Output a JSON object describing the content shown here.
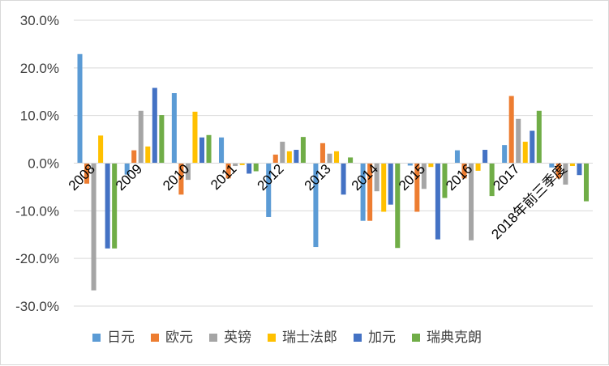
{
  "chart_data": {
    "type": "bar",
    "title": "",
    "xlabel": "",
    "ylabel": "",
    "ylim": [
      -0.3,
      0.3
    ],
    "y_ticks": [
      0.3,
      0.2,
      0.1,
      0.0,
      -0.1,
      -0.2,
      -0.3
    ],
    "y_tick_labels": [
      "30.0%",
      "20.0%",
      "10.0%",
      "0.0%",
      "-10.0%",
      "-20.0%",
      "-30.0%"
    ],
    "grid": "horizontal",
    "legend_position": "bottom",
    "categories": [
      "2008",
      "2009",
      "2010",
      "2011",
      "2012",
      "2013",
      "2014",
      "2015",
      "2016",
      "2017",
      "2018年前三季度"
    ],
    "series": [
      {
        "name": "日元",
        "color": "#5b9bd5",
        "values": [
          0.229,
          -0.024,
          0.147,
          0.054,
          -0.113,
          -0.176,
          -0.121,
          -0.005,
          0.027,
          0.038,
          -0.009
        ]
      },
      {
        "name": "欧元",
        "color": "#ed7d31",
        "values": [
          -0.043,
          0.027,
          -0.066,
          -0.032,
          0.018,
          0.042,
          -0.121,
          -0.102,
          -0.032,
          0.141,
          -0.032
        ]
      },
      {
        "name": "英镑",
        "color": "#a5a5a5",
        "values": [
          -0.267,
          0.11,
          -0.035,
          -0.006,
          0.045,
          0.02,
          -0.059,
          -0.054,
          -0.162,
          0.093,
          -0.045
        ]
      },
      {
        "name": "瑞士法郎",
        "color": "#ffc000",
        "values": [
          0.058,
          0.035,
          0.108,
          -0.004,
          0.025,
          0.025,
          -0.102,
          -0.008,
          -0.016,
          0.045,
          -0.006
        ]
      },
      {
        "name": "加元",
        "color": "#4472c4",
        "values": [
          -0.179,
          0.158,
          0.054,
          -0.022,
          0.028,
          -0.066,
          -0.087,
          -0.16,
          0.028,
          0.068,
          -0.025
        ]
      },
      {
        "name": "瑞典克朗",
        "color": "#70ad47",
        "values": [
          -0.179,
          0.101,
          0.059,
          -0.017,
          0.055,
          0.012,
          -0.178,
          -0.073,
          -0.069,
          0.11,
          -0.08
        ]
      }
    ]
  }
}
